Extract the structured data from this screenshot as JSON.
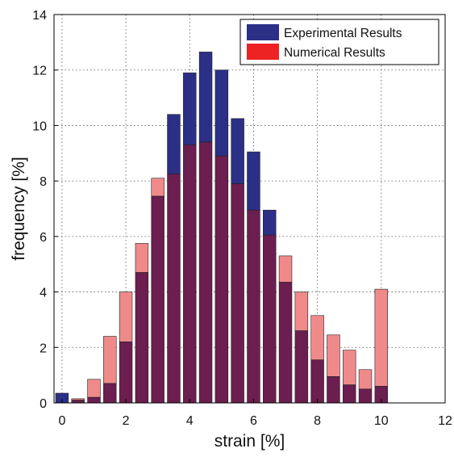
{
  "chart_data": {
    "type": "bar",
    "title": "",
    "xlabel": "strain [%]",
    "ylabel": "frequency [%]",
    "xlim": [
      -0.25,
      12
    ],
    "ylim": [
      0,
      14
    ],
    "xticks": [
      0,
      2,
      4,
      6,
      8,
      10,
      12
    ],
    "yticks": [
      0,
      2,
      4,
      6,
      8,
      10,
      12,
      14
    ],
    "grid": true,
    "legend_position": "top-right",
    "bin_centers": [
      0,
      0.5,
      1,
      1.5,
      2,
      2.5,
      3,
      3.5,
      4,
      4.5,
      5,
      5.5,
      6,
      6.5,
      7,
      7.5,
      8,
      8.5,
      9,
      9.5,
      10
    ],
    "series": [
      {
        "name": "Experimental Results",
        "color": "#2b2f86",
        "values": [
          0.35,
          0.1,
          0.2,
          0.7,
          2.2,
          4.7,
          7.45,
          10.4,
          11.9,
          12.65,
          12.0,
          10.25,
          9.05,
          6.95,
          4.35,
          2.6,
          1.55,
          0.95,
          0.65,
          0.5,
          0.6
        ]
      },
      {
        "name": "Numerical Results",
        "color": "#f08a8a",
        "values": [
          0.0,
          0.15,
          0.85,
          2.4,
          4.0,
          5.75,
          8.1,
          8.25,
          9.3,
          9.4,
          8.9,
          7.9,
          6.95,
          6.05,
          5.3,
          4.0,
          3.15,
          2.45,
          1.9,
          1.2,
          4.1
        ]
      }
    ],
    "overlap_color": "#6b1e4f"
  }
}
